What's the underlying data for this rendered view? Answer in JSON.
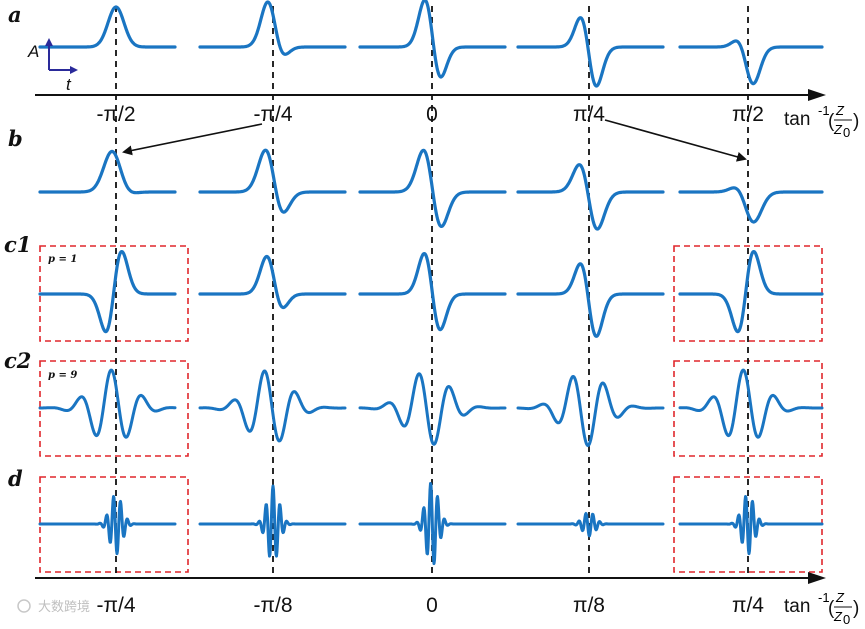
{
  "figure": {
    "row_labels": [
      "a",
      "b",
      "c1",
      "c2",
      "d"
    ],
    "top_axis": {
      "ticks": [
        "-π/2",
        "-π/4",
        "0",
        "π/4",
        "π/2"
      ],
      "label_main": "tan",
      "label_sup": "-1",
      "label_num": "Z",
      "label_den": "Z",
      "label_den_sub": "0"
    },
    "bottom_axis": {
      "ticks": [
        "-π/4",
        "-π/8",
        "0",
        "π/8",
        "π/4"
      ],
      "label_main": "tan",
      "label_sup": "-1",
      "label_num": "Z",
      "label_den": "Z",
      "label_den_sub": "0"
    },
    "inset": {
      "amplitude_label": "A",
      "time_label": "t"
    },
    "panel_notes": {
      "c1": "p = 1",
      "c2": "p = 9"
    },
    "watermark": "大数跨境",
    "colors": {
      "wave": "#1a75c2",
      "highlight_box": "#e0272c",
      "inset_axes": "#2a2a9a"
    }
  }
}
